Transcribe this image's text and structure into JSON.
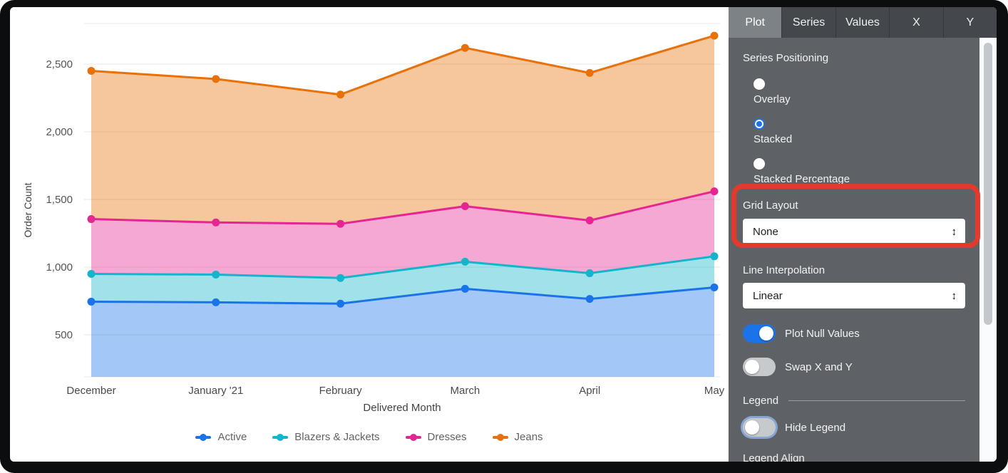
{
  "chart_data": {
    "type": "area",
    "stacked": true,
    "x": [
      "December",
      "January '21",
      "February",
      "March",
      "April",
      "May"
    ],
    "series": [
      {
        "name": "Active",
        "color": "#1A73E8",
        "values": [
          745,
          740,
          730,
          840,
          765,
          850
        ]
      },
      {
        "name": "Blazers & Jackets",
        "color": "#12B5CB",
        "values": [
          205,
          205,
          190,
          200,
          190,
          230
        ]
      },
      {
        "name": "Dresses",
        "color": "#E52592",
        "values": [
          405,
          385,
          400,
          410,
          390,
          480
        ]
      },
      {
        "name": "Jeans",
        "color": "#E8710A",
        "values": [
          1095,
          1060,
          955,
          1170,
          1090,
          1150
        ]
      }
    ],
    "cumulative_totals": [
      {
        "name": "Active",
        "values": [
          745,
          740,
          730,
          840,
          765,
          850
        ]
      },
      {
        "name": "Blazers & Jackets",
        "values": [
          950,
          945,
          920,
          1040,
          955,
          1080
        ]
      },
      {
        "name": "Dresses",
        "values": [
          1355,
          1330,
          1320,
          1450,
          1345,
          1560
        ]
      },
      {
        "name": "Jeans",
        "values": [
          2450,
          2390,
          2275,
          2620,
          2435,
          2710
        ]
      }
    ],
    "title": "",
    "xlabel": "Delivered Month",
    "ylabel": "Order Count",
    "yticks": [
      500,
      1000,
      1500,
      2000,
      2500
    ],
    "ylim": [
      200,
      2800
    ],
    "grid": "horizontal",
    "legend_position": "bottom"
  },
  "panel": {
    "tabs": [
      {
        "label": "Plot",
        "selected": true
      },
      {
        "label": "Series",
        "selected": false
      },
      {
        "label": "Values",
        "selected": false
      },
      {
        "label": "X",
        "selected": false
      },
      {
        "label": "Y",
        "selected": false
      }
    ],
    "series_positioning": {
      "label": "Series Positioning",
      "options": [
        {
          "label": "Overlay",
          "selected": false
        },
        {
          "label": "Stacked",
          "selected": true
        },
        {
          "label": "Stacked Percentage",
          "selected": false
        }
      ]
    },
    "grid_layout": {
      "label": "Grid Layout",
      "value": "None"
    },
    "line_interpolation": {
      "label": "Line Interpolation",
      "value": "Linear"
    },
    "plot_null_values": {
      "label": "Plot Null Values",
      "on": true
    },
    "swap_x_y": {
      "label": "Swap X and Y",
      "on": false
    },
    "legend_section_label": "Legend",
    "hide_legend": {
      "label": "Hide Legend",
      "on": false,
      "focused": true
    },
    "legend_align_label": "Legend Align"
  },
  "icons": {
    "select_arrow": "↕"
  },
  "colors": {
    "accent_blue": "#1A73E8",
    "annotation_red": "#E23A2D",
    "panel_bg": "#5E6267",
    "tabbar_bg": "#44474B",
    "selected_tab_bg": "#7D8287",
    "gridline": "#E7E7E7",
    "tick_text": "#555555",
    "area_fill_opacity": "0.4"
  }
}
